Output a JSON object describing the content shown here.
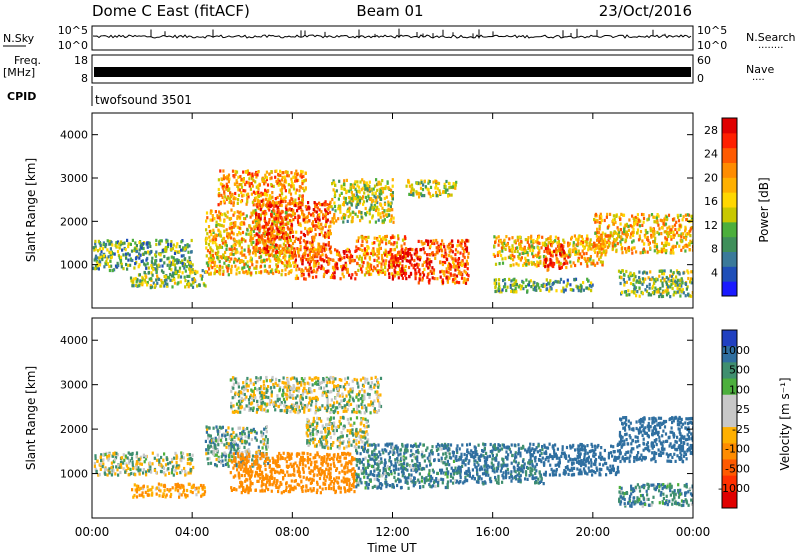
{
  "header": {
    "station": "Dome C East (fitACF)",
    "beam": "Beam 01",
    "date": "23/Oct/2016"
  },
  "nsky_panel": {
    "label": "N.Sky",
    "left_ticks": [
      "10^5",
      "10^0"
    ],
    "right_ticks": [
      "10^5",
      "10^0"
    ],
    "right_label": "N.Search",
    "right_dots": "........"
  },
  "freq_panel": {
    "label_top": "Freq.",
    "label_bottom": "[MHz]",
    "left_ticks": [
      "18",
      "8"
    ],
    "right_ticks": [
      "60",
      "0"
    ],
    "right_label": "Nave",
    "right_dots": "...."
  },
  "cpid_panel": {
    "label": "CPID",
    "mode": "twofsound 3501"
  },
  "x_axis": {
    "title": "Time UT",
    "ticks": [
      "00:00",
      "04:00",
      "08:00",
      "12:00",
      "16:00",
      "20:00",
      "00:00"
    ]
  },
  "power_panel": {
    "ylabel": "Slant Range [km]",
    "yticks": [
      "1000",
      "2000",
      "3000",
      "4000"
    ],
    "colorbar_label": "Power [dB]",
    "colorbar_ticks": [
      "4",
      "8",
      "12",
      "16",
      "20",
      "24",
      "28"
    ],
    "colorbar_colors": [
      "#1a1aff",
      "#1f4fb8",
      "#3a7a9a",
      "#3f8f5a",
      "#4caf3c",
      "#c8c800",
      "#ffd700",
      "#ffb000",
      "#ff8c00",
      "#ff5a00",
      "#ff2000",
      "#e00000"
    ]
  },
  "velocity_panel": {
    "ylabel": "Slant Range [km]",
    "yticks": [
      "1000",
      "2000",
      "3000",
      "4000"
    ],
    "colorbar_label": "Velocity [m s⁻¹]",
    "colorbar_ticks": [
      "1000",
      "500",
      "100",
      "25",
      "-25",
      "-100",
      "-500",
      "-1000"
    ],
    "colorbar_colors": [
      "#2040c0",
      "#2f6fa0",
      "#3f8f6f",
      "#4caf3c",
      "#c8c8c8",
      "#c8c8c8",
      "#ffb000",
      "#ff8c00",
      "#ff5a00",
      "#ff3000",
      "#e00000"
    ]
  },
  "chart_data": {
    "type": "heatmap",
    "x_unit": "hours UT",
    "xlim": [
      0,
      24
    ],
    "ylim": [
      0,
      4500
    ],
    "power_blobs": [
      {
        "x0": 0.0,
        "x1": 4.0,
        "y0": 900,
        "y1": 1600,
        "value": 10
      },
      {
        "x0": 1.5,
        "x1": 4.5,
        "y0": 500,
        "y1": 900,
        "value": 12
      },
      {
        "x0": 4.5,
        "x1": 8.0,
        "y0": 800,
        "y1": 2300,
        "value": 18
      },
      {
        "x0": 5.0,
        "x1": 8.5,
        "y0": 2400,
        "y1": 3200,
        "value": 20
      },
      {
        "x0": 6.5,
        "x1": 9.5,
        "y0": 1300,
        "y1": 2500,
        "value": 24
      },
      {
        "x0": 8.0,
        "x1": 10.5,
        "y0": 700,
        "y1": 1400,
        "value": 24
      },
      {
        "x0": 9.5,
        "x1": 12.0,
        "y0": 2000,
        "y1": 3000,
        "value": 14
      },
      {
        "x0": 10.5,
        "x1": 12.5,
        "y0": 800,
        "y1": 1700,
        "value": 20
      },
      {
        "x0": 11.8,
        "x1": 13.0,
        "y0": 700,
        "y1": 1400,
        "value": 28
      },
      {
        "x0": 13.0,
        "x1": 15.0,
        "y0": 600,
        "y1": 1600,
        "value": 24
      },
      {
        "x0": 12.5,
        "x1": 14.5,
        "y0": 2600,
        "y1": 3000,
        "value": 14
      },
      {
        "x0": 16.0,
        "x1": 20.5,
        "y0": 1000,
        "y1": 1700,
        "value": 18
      },
      {
        "x0": 16.0,
        "x1": 20.0,
        "y0": 400,
        "y1": 700,
        "value": 10
      },
      {
        "x0": 18.0,
        "x1": 19.0,
        "y0": 900,
        "y1": 1500,
        "value": 26
      },
      {
        "x0": 20.0,
        "x1": 24.0,
        "y0": 1300,
        "y1": 2200,
        "value": 18
      },
      {
        "x0": 21.0,
        "x1": 24.0,
        "y0": 300,
        "y1": 900,
        "value": 12
      }
    ],
    "velocity_blobs": [
      {
        "x0": 0.0,
        "x1": 4.0,
        "y0": 1000,
        "y1": 1500,
        "value": 0
      },
      {
        "x0": 1.5,
        "x1": 4.5,
        "y0": 500,
        "y1": 800,
        "value": -100
      },
      {
        "x0": 4.5,
        "x1": 7.0,
        "y0": 1200,
        "y1": 2100,
        "value": 50
      },
      {
        "x0": 5.5,
        "x1": 10.5,
        "y0": 600,
        "y1": 1500,
        "value": -300
      },
      {
        "x0": 5.5,
        "x1": 11.5,
        "y0": 2400,
        "y1": 3200,
        "value": 0
      },
      {
        "x0": 8.5,
        "x1": 11.0,
        "y0": 1600,
        "y1": 2300,
        "value": 0
      },
      {
        "x0": 10.5,
        "x1": 14.5,
        "y0": 700,
        "y1": 1700,
        "value": 100
      },
      {
        "x0": 14.5,
        "x1": 18.0,
        "y0": 800,
        "y1": 1700,
        "value": 150
      },
      {
        "x0": 18.0,
        "x1": 21.0,
        "y0": 1000,
        "y1": 1700,
        "value": 300
      },
      {
        "x0": 21.0,
        "x1": 24.0,
        "y0": 1300,
        "y1": 2300,
        "value": 200
      },
      {
        "x0": 21.0,
        "x1": 24.0,
        "y0": 300,
        "y1": 800,
        "value": 100
      }
    ]
  }
}
